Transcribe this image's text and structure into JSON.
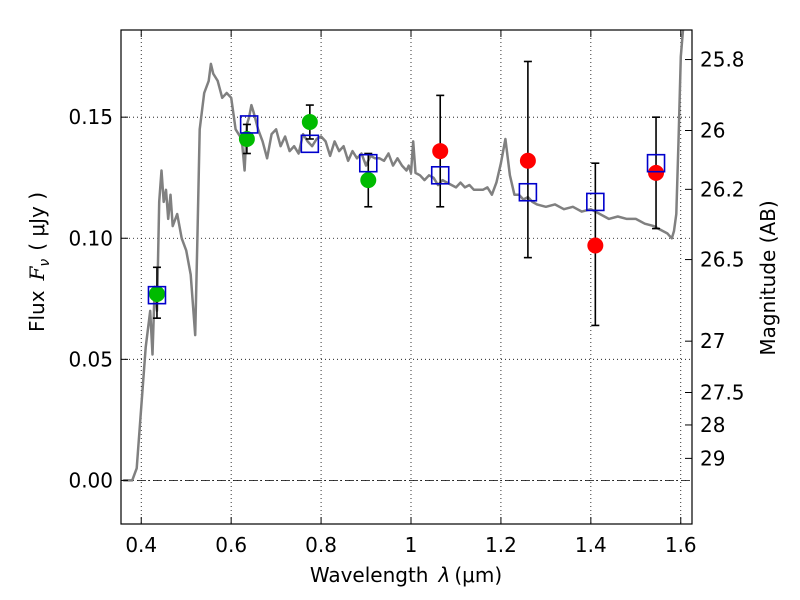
{
  "chart_data": {
    "type": "scatter",
    "xlabel": "Wavelength",
    "xlabel_symbol": "λ",
    "xlabel_unit": "(μm)",
    "ylabel": "Flux",
    "ylabel_symbol": "F",
    "ylabel_subscript": "ν",
    "ylabel_unit": "( μJy )",
    "y2label": "Magnitude (AB)",
    "xlim": [
      0.355,
      1.625
    ],
    "ylim": [
      -0.018,
      0.186
    ],
    "grid": true,
    "grid_style": "dotted",
    "xticks": [
      0.4,
      0.6,
      0.8,
      1.0,
      1.2,
      1.4,
      1.6
    ],
    "xtick_labels": [
      "0.4",
      "0.6",
      "0.8",
      "1",
      "1.2",
      "1.4",
      "1.6"
    ],
    "yticks": [
      0.0,
      0.05,
      0.1,
      0.15
    ],
    "ytick_labels": [
      "0.00",
      "0.05",
      "0.10",
      "0.15"
    ],
    "mag_ticks": [
      {
        "label": "25.8",
        "flux": 0.1738
      },
      {
        "label": "26",
        "flux": 0.1445
      },
      {
        "label": "26.2",
        "flux": 0.1202
      },
      {
        "label": "26.5",
        "flux": 0.0912
      },
      {
        "label": "27",
        "flux": 0.0575
      },
      {
        "label": "27.5",
        "flux": 0.0363
      },
      {
        "label": "28",
        "flux": 0.0229
      },
      {
        "label": "29",
        "flux": 0.0091
      }
    ],
    "zero_line": 0.0,
    "series": [
      {
        "kind": "sed-line",
        "color": "#808080",
        "x": [
          0.36,
          0.38,
          0.39,
          0.4,
          0.41,
          0.42,
          0.425,
          0.43,
          0.435,
          0.44,
          0.445,
          0.45,
          0.455,
          0.46,
          0.465,
          0.47,
          0.48,
          0.49,
          0.5,
          0.51,
          0.52,
          0.525,
          0.53,
          0.54,
          0.55,
          0.555,
          0.56,
          0.57,
          0.58,
          0.59,
          0.6,
          0.61,
          0.62,
          0.625,
          0.63,
          0.635,
          0.64,
          0.645,
          0.65,
          0.66,
          0.67,
          0.68,
          0.69,
          0.7,
          0.71,
          0.72,
          0.73,
          0.74,
          0.75,
          0.76,
          0.77,
          0.78,
          0.79,
          0.8,
          0.81,
          0.82,
          0.83,
          0.84,
          0.85,
          0.86,
          0.87,
          0.88,
          0.89,
          0.9,
          0.91,
          0.92,
          0.93,
          0.94,
          0.95,
          0.96,
          0.97,
          0.98,
          0.99,
          0.995,
          1.0,
          1.005,
          1.01,
          1.02,
          1.03,
          1.04,
          1.05,
          1.06,
          1.07,
          1.08,
          1.09,
          1.1,
          1.11,
          1.12,
          1.13,
          1.14,
          1.15,
          1.16,
          1.17,
          1.18,
          1.19,
          1.2,
          1.21,
          1.22,
          1.23,
          1.24,
          1.25,
          1.26,
          1.27,
          1.28,
          1.3,
          1.32,
          1.34,
          1.36,
          1.38,
          1.4,
          1.42,
          1.44,
          1.46,
          1.48,
          1.5,
          1.52,
          1.54,
          1.55,
          1.56,
          1.57,
          1.575,
          1.58,
          1.585,
          1.59,
          1.595,
          1.6,
          1.605
        ],
        "y": [
          0.0,
          0.0,
          0.005,
          0.03,
          0.055,
          0.07,
          0.052,
          0.08,
          0.07,
          0.115,
          0.128,
          0.115,
          0.12,
          0.108,
          0.118,
          0.105,
          0.11,
          0.1,
          0.095,
          0.085,
          0.06,
          0.1,
          0.145,
          0.16,
          0.165,
          0.172,
          0.168,
          0.165,
          0.158,
          0.16,
          0.158,
          0.145,
          0.142,
          0.138,
          0.128,
          0.147,
          0.15,
          0.155,
          0.152,
          0.145,
          0.14,
          0.133,
          0.143,
          0.145,
          0.138,
          0.142,
          0.136,
          0.138,
          0.135,
          0.143,
          0.14,
          0.138,
          0.141,
          0.142,
          0.14,
          0.134,
          0.14,
          0.136,
          0.138,
          0.132,
          0.136,
          0.133,
          0.135,
          0.13,
          0.134,
          0.133,
          0.133,
          0.132,
          0.135,
          0.13,
          0.133,
          0.13,
          0.128,
          0.13,
          0.127,
          0.14,
          0.127,
          0.126,
          0.124,
          0.126,
          0.125,
          0.122,
          0.124,
          0.123,
          0.122,
          0.121,
          0.123,
          0.121,
          0.122,
          0.12,
          0.12,
          0.12,
          0.121,
          0.118,
          0.123,
          0.131,
          0.141,
          0.126,
          0.118,
          0.118,
          0.116,
          0.117,
          0.115,
          0.114,
          0.113,
          0.114,
          0.112,
          0.113,
          0.111,
          0.112,
          0.11,
          0.108,
          0.109,
          0.108,
          0.108,
          0.106,
          0.105,
          0.104,
          0.103,
          0.102,
          0.101,
          0.1,
          0.103,
          0.11,
          0.14,
          0.175,
          0.186
        ]
      },
      {
        "kind": "observed",
        "color": "#00bb00",
        "marker": "circle",
        "points": [
          {
            "x": 0.435,
            "y": 0.077,
            "yerr_lo": 0.01,
            "yerr_hi": 0.011
          },
          {
            "x": 0.635,
            "y": 0.141,
            "yerr_lo": 0.006,
            "yerr_hi": 0.006
          },
          {
            "x": 0.775,
            "y": 0.148,
            "yerr_lo": 0.007,
            "yerr_hi": 0.007
          },
          {
            "x": 0.905,
            "y": 0.124,
            "yerr_lo": 0.011,
            "yerr_hi": 0.011
          }
        ]
      },
      {
        "kind": "observed",
        "color": "#ff0000",
        "marker": "circle",
        "points": [
          {
            "x": 1.065,
            "y": 0.136,
            "yerr_lo": 0.023,
            "yerr_hi": 0.023
          },
          {
            "x": 1.26,
            "y": 0.132,
            "yerr_lo": 0.04,
            "yerr_hi": 0.041
          },
          {
            "x": 1.41,
            "y": 0.097,
            "yerr_lo": 0.033,
            "yerr_hi": 0.034
          },
          {
            "x": 1.545,
            "y": 0.127,
            "yerr_lo": 0.023,
            "yerr_hi": 0.023
          }
        ]
      },
      {
        "kind": "model-synthetic",
        "color": "#0000cc",
        "marker": "square",
        "points": [
          {
            "x": 0.435,
            "y": 0.0765
          },
          {
            "x": 0.64,
            "y": 0.147
          },
          {
            "x": 0.775,
            "y": 0.139
          },
          {
            "x": 0.905,
            "y": 0.131
          },
          {
            "x": 1.065,
            "y": 0.126
          },
          {
            "x": 1.26,
            "y": 0.119
          },
          {
            "x": 1.41,
            "y": 0.115
          },
          {
            "x": 1.545,
            "y": 0.131
          }
        ]
      }
    ]
  }
}
